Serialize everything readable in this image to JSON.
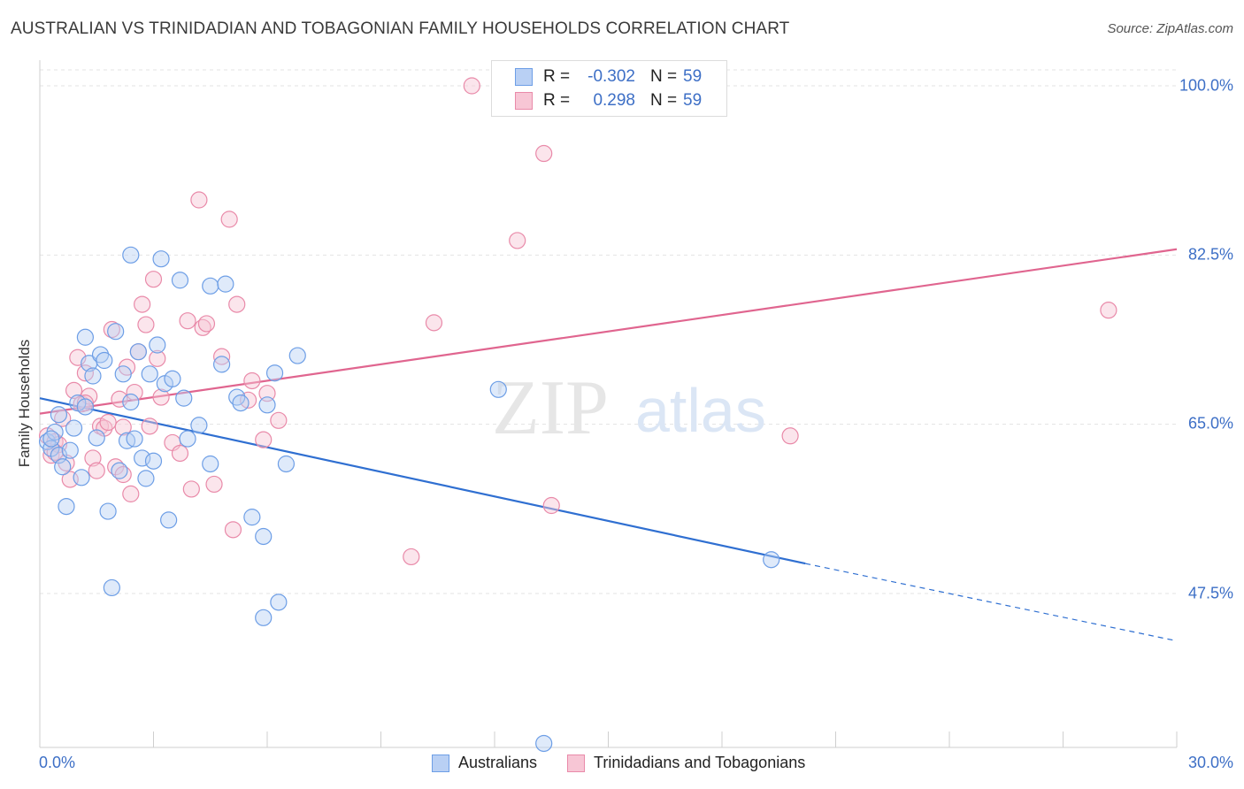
{
  "title": "AUSTRALIAN VS TRINIDADIAN AND TOBAGONIAN FAMILY HOUSEHOLDS CORRELATION CHART",
  "source": "Source: ZipAtlas.com",
  "watermark": {
    "zip": "ZIP",
    "atlas": "atlas"
  },
  "legend_top": {
    "rows": [
      {
        "r_label": "R =",
        "r_value": "-0.302",
        "n_label": "N =",
        "n_value": "59"
      },
      {
        "r_label": "R =",
        "r_value": "0.298",
        "n_label": "N =",
        "n_value": "59"
      }
    ]
  },
  "legend_bottom": [
    "Australians",
    "Trinidadians and Tobagonians"
  ],
  "chart_data": {
    "type": "scatter",
    "title": "AUSTRALIAN VS TRINIDADIAN AND TOBAGONIAN FAMILY HOUSEHOLDS CORRELATION CHART",
    "xlabel": "",
    "ylabel": "Family Households",
    "xlim": [
      0,
      30
    ],
    "ylim": [
      34,
      101
    ],
    "x_tick_labels": [
      "0.0%",
      "30.0%"
    ],
    "y_ticks": [
      47.5,
      65.0,
      82.5,
      100.0
    ],
    "y_tick_labels": [
      "47.5%",
      "65.0%",
      "82.5%",
      "100.0%"
    ],
    "grid": true,
    "series": [
      {
        "name": "Australians",
        "color": "#6d9ee6",
        "fill": "#b9d0f4",
        "r": -0.302,
        "n": 59,
        "trend": {
          "x0": 0,
          "y0": 67.7,
          "x1": 20.2,
          "y1": 50.6,
          "dash_to_x": 30,
          "dash_to_y": 42.6
        },
        "points": [
          [
            0.2,
            63.2
          ],
          [
            0.3,
            62.5
          ],
          [
            0.4,
            64.2
          ],
          [
            0.5,
            61.8
          ],
          [
            0.5,
            66.0
          ],
          [
            0.6,
            60.6
          ],
          [
            0.7,
            56.5
          ],
          [
            0.8,
            62.3
          ],
          [
            0.9,
            64.6
          ],
          [
            1.0,
            67.2
          ],
          [
            1.1,
            59.5
          ],
          [
            1.2,
            66.8
          ],
          [
            1.2,
            74.0
          ],
          [
            1.3,
            71.3
          ],
          [
            1.4,
            70.0
          ],
          [
            1.5,
            63.6
          ],
          [
            1.6,
            72.2
          ],
          [
            1.7,
            71.6
          ],
          [
            1.8,
            56.0
          ],
          [
            1.9,
            48.1
          ],
          [
            2.0,
            74.6
          ],
          [
            2.1,
            60.2
          ],
          [
            2.2,
            70.2
          ],
          [
            2.3,
            63.3
          ],
          [
            2.4,
            67.3
          ],
          [
            2.4,
            82.5
          ],
          [
            2.5,
            63.5
          ],
          [
            2.6,
            72.5
          ],
          [
            2.7,
            61.5
          ],
          [
            2.8,
            59.4
          ],
          [
            2.9,
            70.2
          ],
          [
            3.0,
            61.2
          ],
          [
            3.1,
            73.2
          ],
          [
            3.2,
            82.1
          ],
          [
            3.3,
            69.2
          ],
          [
            3.4,
            55.1
          ],
          [
            3.5,
            69.7
          ],
          [
            3.7,
            79.9
          ],
          [
            3.8,
            67.7
          ],
          [
            3.9,
            63.5
          ],
          [
            4.2,
            64.9
          ],
          [
            4.5,
            60.9
          ],
          [
            4.5,
            79.3
          ],
          [
            4.8,
            71.2
          ],
          [
            4.9,
            79.5
          ],
          [
            5.2,
            67.8
          ],
          [
            5.3,
            67.2
          ],
          [
            5.6,
            55.4
          ],
          [
            5.9,
            53.4
          ],
          [
            5.9,
            45.0
          ],
          [
            6.0,
            67.0
          ],
          [
            6.2,
            70.3
          ],
          [
            6.3,
            46.6
          ],
          [
            6.5,
            60.9
          ],
          [
            6.8,
            72.1
          ],
          [
            12.1,
            68.6
          ],
          [
            13.3,
            32.0
          ],
          [
            19.3,
            51.0
          ],
          [
            0.3,
            63.5
          ]
        ]
      },
      {
        "name": "Trinidadians and Tobagonians",
        "color": "#e98aa9",
        "fill": "#f7c6d5",
        "r": 0.298,
        "n": 59,
        "trend": {
          "x0": 0,
          "y0": 66.1,
          "x1": 30,
          "y1": 83.1
        },
        "points": [
          [
            0.2,
            63.8
          ],
          [
            0.3,
            61.8
          ],
          [
            0.4,
            63.2
          ],
          [
            0.5,
            62.9
          ],
          [
            0.6,
            65.6
          ],
          [
            0.7,
            61.0
          ],
          [
            0.8,
            59.3
          ],
          [
            0.9,
            68.5
          ],
          [
            1.0,
            71.9
          ],
          [
            1.1,
            67.1
          ],
          [
            1.2,
            70.3
          ],
          [
            1.3,
            67.9
          ],
          [
            1.4,
            61.5
          ],
          [
            1.5,
            60.2
          ],
          [
            1.6,
            64.8
          ],
          [
            1.7,
            64.6
          ],
          [
            1.8,
            65.2
          ],
          [
            1.9,
            74.8
          ],
          [
            2.0,
            60.6
          ],
          [
            2.1,
            67.6
          ],
          [
            2.2,
            59.8
          ],
          [
            2.3,
            70.9
          ],
          [
            2.4,
            57.8
          ],
          [
            2.5,
            68.3
          ],
          [
            2.6,
            72.5
          ],
          [
            2.7,
            77.4
          ],
          [
            2.8,
            75.3
          ],
          [
            2.9,
            64.8
          ],
          [
            3.0,
            80.0
          ],
          [
            3.1,
            71.8
          ],
          [
            3.2,
            67.8
          ],
          [
            3.5,
            63.1
          ],
          [
            3.7,
            62.0
          ],
          [
            3.9,
            75.7
          ],
          [
            4.0,
            58.3
          ],
          [
            4.2,
            88.2
          ],
          [
            4.3,
            75.0
          ],
          [
            4.4,
            75.4
          ],
          [
            4.6,
            58.8
          ],
          [
            4.8,
            72.0
          ],
          [
            5.0,
            86.2
          ],
          [
            5.1,
            54.1
          ],
          [
            5.2,
            77.4
          ],
          [
            5.5,
            67.5
          ],
          [
            5.6,
            69.5
          ],
          [
            5.9,
            63.4
          ],
          [
            6.0,
            68.2
          ],
          [
            6.3,
            65.4
          ],
          [
            9.8,
            51.3
          ],
          [
            10.4,
            75.5
          ],
          [
            11.4,
            100.0
          ],
          [
            12.6,
            84.0
          ],
          [
            13.3,
            93.0
          ],
          [
            13.5,
            56.6
          ],
          [
            19.8,
            63.8
          ],
          [
            28.2,
            76.8
          ],
          [
            1.2,
            67.2
          ],
          [
            0.4,
            62.1
          ],
          [
            2.2,
            64.7
          ]
        ]
      }
    ]
  }
}
